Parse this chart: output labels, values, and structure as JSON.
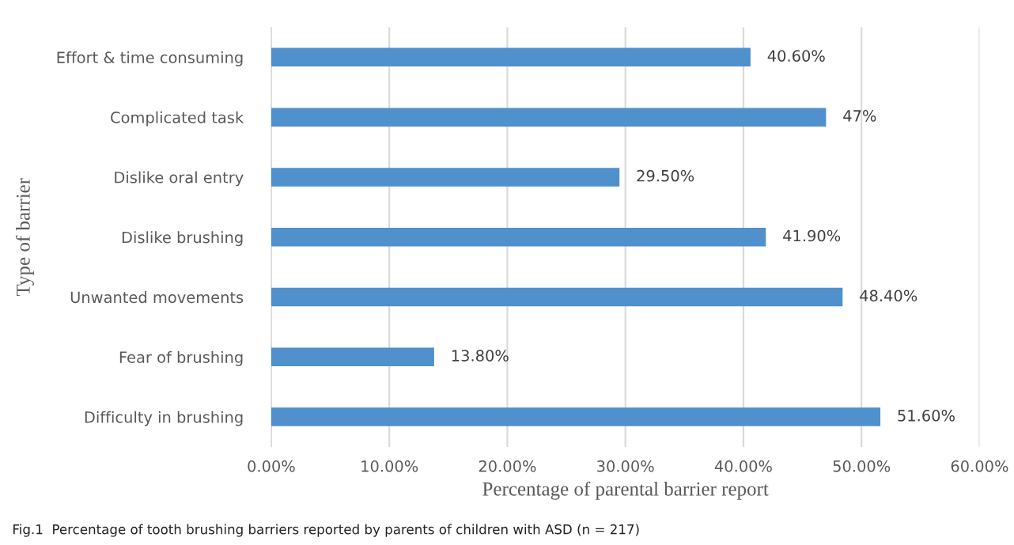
{
  "chart_data": {
    "type": "bar",
    "orientation": "horizontal",
    "categories": [
      "Effort & time consuming",
      "Complicated task",
      "Dislike oral entry",
      "Dislike brushing",
      "Unwanted movements",
      "Fear of brushing",
      "Difficulty in brushing"
    ],
    "values": [
      40.6,
      47,
      29.5,
      41.9,
      48.4,
      13.8,
      51.6
    ],
    "value_labels": [
      "40.60%",
      "47%",
      "29.50%",
      "41.90%",
      "48.40%",
      "13.80%",
      "51.60%"
    ],
    "color": "#4f90cd",
    "xlim": [
      0,
      60
    ],
    "xticks": [
      {
        "value": 0,
        "label": "0.00%"
      },
      {
        "value": 10,
        "label": "10.00%"
      },
      {
        "value": 20,
        "label": "20.00%"
      },
      {
        "value": 30,
        "label": "30.00%"
      },
      {
        "value": 40,
        "label": "40.00%"
      },
      {
        "value": 50,
        "label": "50.00%"
      },
      {
        "value": 60,
        "label": "60.00%"
      }
    ],
    "xlabel": "Percentage of parental barrier report",
    "ylabel": "Type of barrier",
    "grid": "x",
    "annotations": [
      "Fig.1  Percentage of tooth brushing barriers reported by parents of children with ASD (n = 217)"
    ]
  }
}
